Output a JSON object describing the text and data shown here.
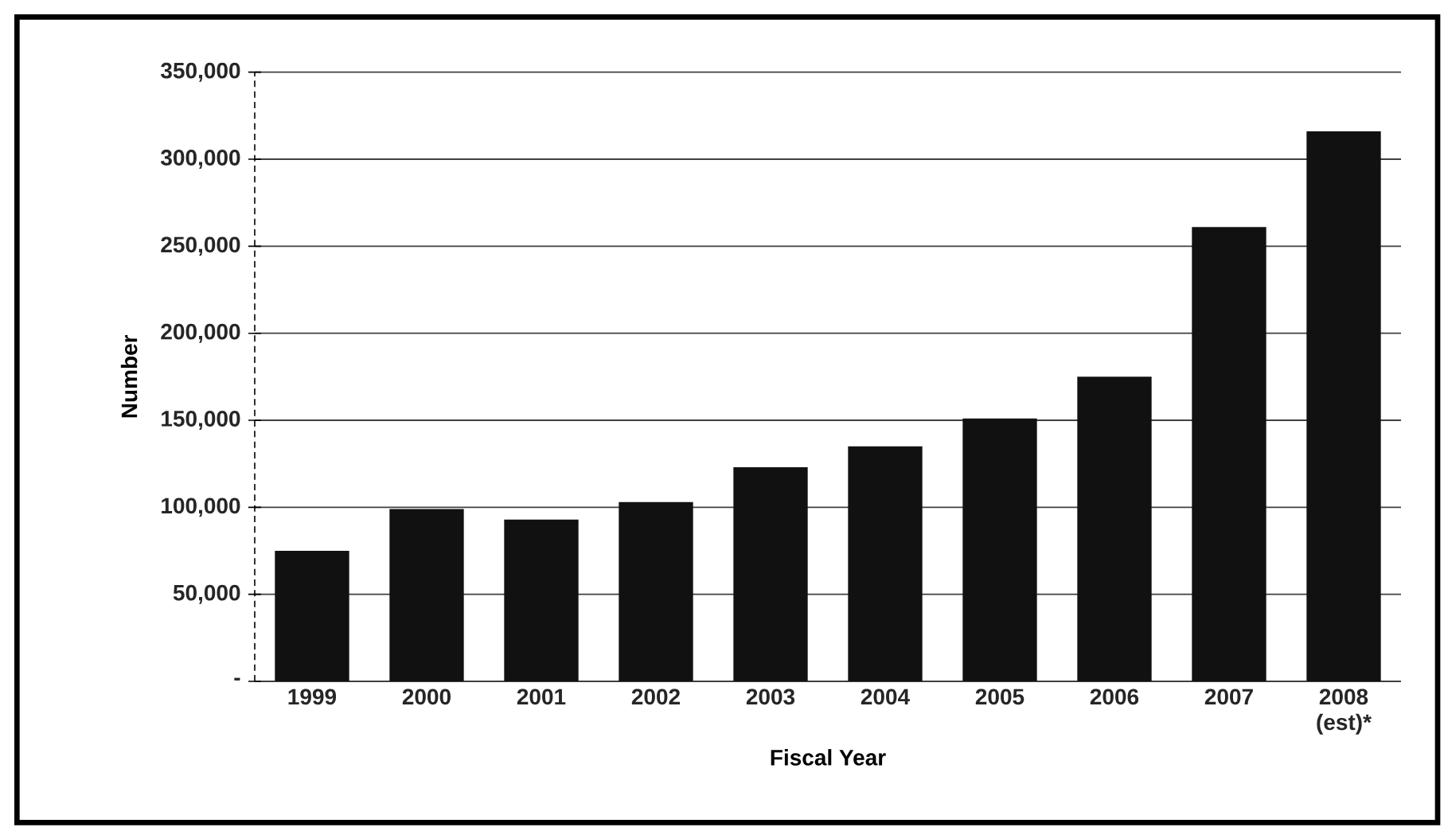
{
  "chart_data": {
    "type": "bar",
    "xlabel": "Fiscal Year",
    "ylabel": "Number",
    "categories": [
      "1999",
      "2000",
      "2001",
      "2002",
      "2003",
      "2004",
      "2005",
      "2006",
      "2007",
      "2008 (est)*"
    ],
    "values": [
      75000,
      99000,
      93000,
      103000,
      123000,
      135000,
      151000,
      175000,
      261000,
      316000
    ],
    "color": "#111111",
    "ylim": [
      0,
      350000
    ],
    "yticks": [
      {
        "value": 0,
        "label": "-"
      },
      {
        "value": 50000,
        "label": "50,000"
      },
      {
        "value": 100000,
        "label": "100,000"
      },
      {
        "value": 150000,
        "label": "150,000"
      },
      {
        "value": 200000,
        "label": "200,000"
      },
      {
        "value": 250000,
        "label": "250,000"
      },
      {
        "value": 300000,
        "label": "300,000"
      },
      {
        "value": 350000,
        "label": "350,000"
      }
    ],
    "grid": "y"
  }
}
